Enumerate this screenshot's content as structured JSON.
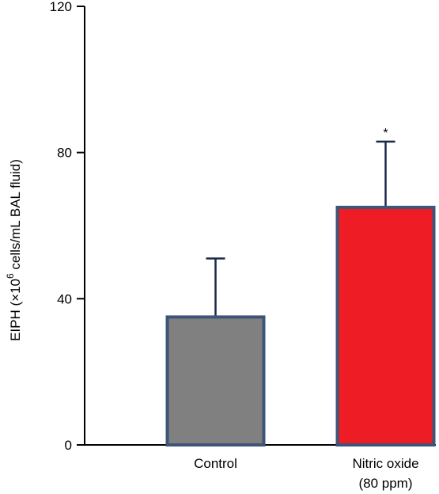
{
  "chart_data": {
    "type": "bar",
    "ylabel": {
      "pre": "EIPH (×10",
      "sup": "6",
      "post": " cells/mL BAL fluid)"
    },
    "ylim": [
      0,
      120
    ],
    "yticks": [
      0,
      40,
      80,
      120
    ],
    "grid": false,
    "categories": [
      {
        "lines": [
          "Control"
        ]
      },
      {
        "lines": [
          "Nitric oxide",
          "(80 ppm)"
        ]
      }
    ],
    "values": [
      35,
      65
    ],
    "errors": [
      16,
      18
    ],
    "colors": [
      "#808080",
      "#ee1c24"
    ],
    "edge_color": "#3d5578",
    "significance": [
      "",
      "*"
    ]
  }
}
